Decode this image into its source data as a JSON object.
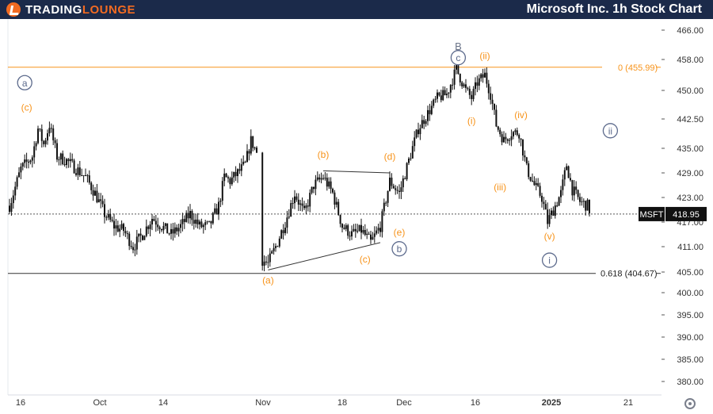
{
  "header": {
    "logo_text_part1": "TRADING",
    "logo_text_part2": "LOUNGE",
    "title": "Microsoft Inc. 1h Stock Chart"
  },
  "colors": {
    "header_bg": "#1b2a4a",
    "brand_orange": "#f26b22",
    "wave_orange": "#f7931a",
    "wave_circle": "#5c6a8c",
    "candle": "#111111",
    "level_line": "#f7931a",
    "fib_line": "#333333"
  },
  "chart_data": {
    "type": "candlestick",
    "symbol": "MSFT",
    "last_price": 418.95,
    "y_ticks": [
      "466.00",
      "458.00",
      "450.00",
      "442.50",
      "435.00",
      "429.00",
      "423.00",
      "417.00",
      "411.00",
      "405.00",
      "400.00",
      "395.00",
      "390.00",
      "385.00",
      "380.00"
    ],
    "x_ticks": [
      "16",
      "Oct",
      "14",
      "Nov",
      "18",
      "Dec",
      "16",
      "2025",
      "21"
    ],
    "levels": [
      {
        "label": "0 (455.99)",
        "value": 455.99
      },
      {
        "label": "0.618 (404.67)",
        "value": 404.67
      }
    ],
    "price_path": [
      [
        0.0,
        421.0
      ],
      [
        0.6,
        430.0
      ],
      [
        1.2,
        433.0
      ],
      [
        1.5,
        440.0
      ],
      [
        1.8,
        436.0
      ],
      [
        2.1,
        441.0
      ],
      [
        2.5,
        433.0
      ],
      [
        3.0,
        432.0
      ],
      [
        3.5,
        430.0
      ],
      [
        4.0,
        428.0
      ],
      [
        4.5,
        424.0
      ],
      [
        5.0,
        419.0
      ],
      [
        5.5,
        416.0
      ],
      [
        6.0,
        415.0
      ],
      [
        6.5,
        411.0
      ],
      [
        7.0,
        414.0
      ],
      [
        7.5,
        418.0
      ],
      [
        8.0,
        416.0
      ],
      [
        8.5,
        414.0
      ],
      [
        9.0,
        416.0
      ],
      [
        9.5,
        419.0
      ],
      [
        10.0,
        416.0
      ],
      [
        10.5,
        416.0
      ],
      [
        11.0,
        421.0
      ],
      [
        11.3,
        428.0
      ],
      [
        11.6,
        427.0
      ],
      [
        12.0,
        429.0
      ],
      [
        12.4,
        431.0
      ],
      [
        12.7,
        437.0
      ],
      [
        13.0,
        434.0
      ],
      [
        13.25,
        408.0
      ],
      [
        13.6,
        407.0
      ],
      [
        14.0,
        411.0
      ],
      [
        14.5,
        417.0
      ],
      [
        15.0,
        424.0
      ],
      [
        15.5,
        419.0
      ],
      [
        16.0,
        426.0
      ],
      [
        16.5,
        428.0
      ],
      [
        17.0,
        424.0
      ],
      [
        17.5,
        416.0
      ],
      [
        18.0,
        414.0
      ],
      [
        18.5,
        415.0
      ],
      [
        19.0,
        412.0
      ],
      [
        19.5,
        416.0
      ],
      [
        20.0,
        427.0
      ],
      [
        20.5,
        424.0
      ],
      [
        21.0,
        432.0
      ],
      [
        21.5,
        440.0
      ],
      [
        22.0,
        444.0
      ],
      [
        22.5,
        448.0
      ],
      [
        23.0,
        449.0
      ],
      [
        23.5,
        455.5
      ],
      [
        24.0,
        450.0
      ],
      [
        24.3,
        448.0
      ],
      [
        24.6,
        452.0
      ],
      [
        25.0,
        454.0
      ],
      [
        25.3,
        449.0
      ],
      [
        25.6,
        441.0
      ],
      [
        26.0,
        437.0
      ],
      [
        26.4,
        439.0
      ],
      [
        26.8,
        439.0
      ],
      [
        27.2,
        430.0
      ],
      [
        27.6,
        426.0
      ],
      [
        28.0,
        423.0
      ],
      [
        28.3,
        417.0
      ],
      [
        28.6,
        420.0
      ],
      [
        29.0,
        424.0
      ],
      [
        29.3,
        431.0
      ],
      [
        29.6,
        425.0
      ],
      [
        30.0,
        422.0
      ],
      [
        30.4,
        421.0
      ],
      [
        30.6,
        419.0
      ]
    ],
    "wave_labels": [
      {
        "text": "a",
        "style": "circle",
        "x": 0.8,
        "y": 452.0
      },
      {
        "text": "(c)",
        "style": "orange",
        "x": 0.9,
        "y": 445.5
      },
      {
        "text": "(b)",
        "style": "orange",
        "x": 16.5,
        "y": 433.5
      },
      {
        "text": "(d)",
        "style": "orange",
        "x": 20.0,
        "y": 433.0
      },
      {
        "text": "(a)",
        "style": "orange",
        "x": 13.6,
        "y": 403.0
      },
      {
        "text": "(e)",
        "style": "orange",
        "x": 20.5,
        "y": 414.5
      },
      {
        "text": "b",
        "style": "circle",
        "x": 20.5,
        "y": 410.5
      },
      {
        "text": "(c)",
        "style": "orange",
        "x": 18.7,
        "y": 408.0
      },
      {
        "text": "B",
        "style": "plain",
        "x": 23.6,
        "y": 461.5
      },
      {
        "text": "c",
        "style": "circle",
        "x": 23.6,
        "y": 458.5
      },
      {
        "text": "(ii)",
        "style": "orange",
        "x": 25.0,
        "y": 459.0
      },
      {
        "text": "(i)",
        "style": "orange",
        "x": 24.3,
        "y": 442.0
      },
      {
        "text": "(iv)",
        "style": "orange",
        "x": 26.9,
        "y": 443.5
      },
      {
        "text": "(iii)",
        "style": "orange",
        "x": 25.8,
        "y": 425.5
      },
      {
        "text": "ii",
        "style": "circle",
        "x": 31.6,
        "y": 439.5
      },
      {
        "text": "(v)",
        "style": "orange",
        "x": 28.4,
        "y": 413.5
      },
      {
        "text": "i",
        "style": "circle",
        "x": 28.4,
        "y": 407.8
      }
    ]
  }
}
